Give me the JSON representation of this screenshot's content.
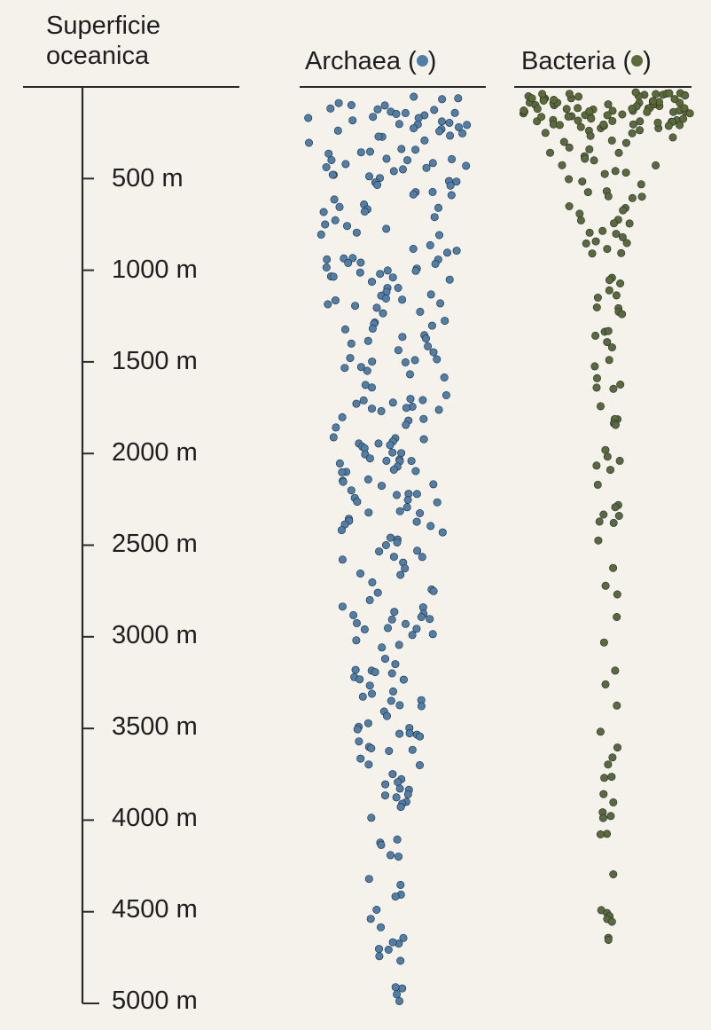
{
  "axis": {
    "title_line1": "Superficie",
    "title_line2": "oceanica",
    "ticks": [
      "500 m",
      "1000 m",
      "1500 m",
      "2000 m",
      "2500 m",
      "3000 m",
      "3500 m",
      "4000 m",
      "4500 m",
      "5000 m"
    ]
  },
  "columns": [
    {
      "name": "Archaea",
      "prefix": "Archaea (",
      "suffix": ")",
      "color": "#4f7ea8"
    },
    {
      "name": "Bacteria",
      "prefix": "Bacteria (",
      "suffix": ")",
      "color": "#5b6a3a"
    }
  ],
  "distribution": {
    "depth_unit": "m",
    "max_depth": 5000,
    "relative_density_note_levels": [
      0,
      500,
      1000,
      1500,
      2000,
      2500,
      3000,
      3500,
      4000,
      4500,
      5000
    ],
    "archaea_relative_width": [
      1.0,
      0.85,
      0.72,
      0.66,
      0.62,
      0.58,
      0.5,
      0.38,
      0.28,
      0.22,
      0.14
    ],
    "bacteria_relative_width": [
      1.0,
      0.6,
      0.18,
      0.16,
      0.14,
      0.14,
      0.14,
      0.12,
      0.12,
      0.1,
      0.06
    ]
  }
}
